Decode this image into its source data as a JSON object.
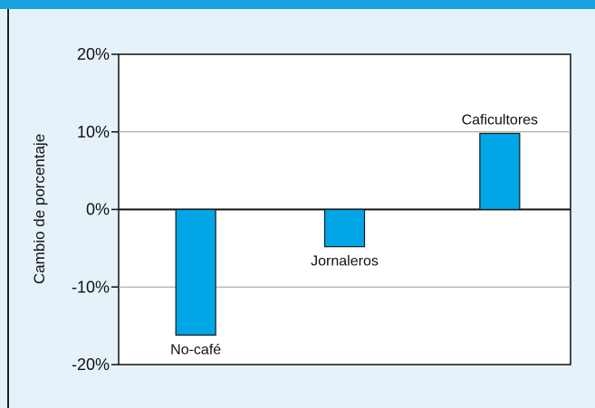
{
  "chart_data": {
    "type": "bar",
    "ylabel": "Cambio de porcentaje",
    "xlabel": "",
    "title": "",
    "categories": [
      "No-café",
      "Jornaleros",
      "Caficultores"
    ],
    "values": [
      -16.2,
      -4.8,
      9.8
    ],
    "ylim": [
      -20,
      20
    ],
    "yticks": [
      {
        "value": 20,
        "label": "20%"
      },
      {
        "value": 10,
        "label": "10%"
      },
      {
        "value": 0,
        "label": "0%"
      },
      {
        "value": -10,
        "label": "-10%"
      },
      {
        "value": -20,
        "label": "-20%"
      }
    ],
    "grid": true,
    "legend": "none",
    "label_position": [
      "below",
      "below",
      "above"
    ]
  },
  "colors": {
    "bar": "#00a6e6",
    "bar_edge": "#1a1a1a",
    "plot_bg": "#ffffff",
    "page_bg": "#e6f2fa",
    "accent": "#1aa3de"
  }
}
